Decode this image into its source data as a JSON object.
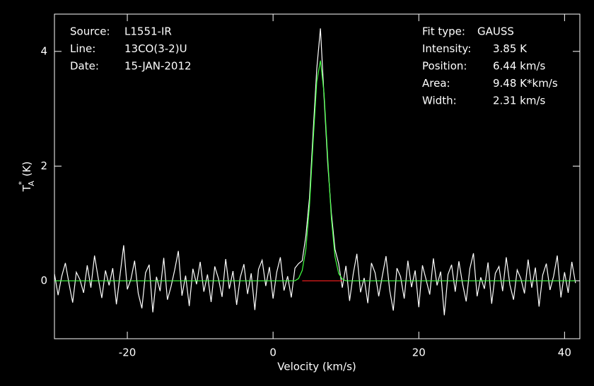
{
  "chart_data": {
    "type": "line",
    "xlabel": "Velocity (km/s)",
    "ylabel": {
      "main": "T",
      "sup": "*",
      "sub": "A",
      "unit": "(K)"
    },
    "xlim": [
      -30,
      42.1
    ],
    "ylim": [
      -1.01,
      4.65
    ],
    "xticks": [
      -20,
      0,
      20,
      40
    ],
    "yticks": [
      0,
      2,
      4
    ],
    "frame_color": "#ffffff",
    "left_notes": [
      {
        "label": "Source:",
        "text": "L1551-IR"
      },
      {
        "label": "Line:",
        "text": "13CO(3-2)U"
      },
      {
        "label": "Date:",
        "text": "15-JAN-2012"
      }
    ],
    "right_notes": [
      {
        "label": "Fit type:",
        "text": "GAUSS"
      },
      {
        "label": "Intensity:",
        "text": "3.85 K"
      },
      {
        "label": "Position:",
        "text": "6.44 km/s"
      },
      {
        "label": "Area:",
        "text": "9.48 K*km/s"
      },
      {
        "label": "Width:",
        "text": "2.31 km/s"
      }
    ],
    "series": [
      {
        "color": "#ffffff",
        "x": [
          -30,
          -29.5,
          -29,
          -28.5,
          -28,
          -27.5,
          -27,
          -26.5,
          -26,
          -25.5,
          -25,
          -24.5,
          -24,
          -23.5,
          -23,
          -22.5,
          -22,
          -21.5,
          -21,
          -20.5,
          -20,
          -19.5,
          -19,
          -18.5,
          -18,
          -17.5,
          -17,
          -16.5,
          -16,
          -15.5,
          -15,
          -14.5,
          -14,
          -13.5,
          -13,
          -12.5,
          -12,
          -11.5,
          -11,
          -10.5,
          -10,
          -9.5,
          -9,
          -8.5,
          -8,
          -7.5,
          -7,
          -6.5,
          -6,
          -5.5,
          -5,
          -4.5,
          -4,
          -3.5,
          -3,
          -2.5,
          -2,
          -1.5,
          -1,
          -0.5,
          0,
          0.5,
          1,
          1.5,
          2,
          2.5,
          3,
          3.5,
          4,
          4.5,
          5,
          5.5,
          6,
          6.5,
          7,
          7.5,
          8,
          8.5,
          9,
          9.5,
          10,
          10.5,
          11,
          11.5,
          12,
          12.5,
          13,
          13.5,
          14,
          14.5,
          15,
          15.5,
          16,
          16.5,
          17,
          17.5,
          18,
          18.5,
          19,
          19.5,
          20,
          20.5,
          21,
          21.5,
          22,
          22.5,
          23,
          23.5,
          24,
          24.5,
          25,
          25.5,
          26,
          26.5,
          27,
          27.5,
          28,
          28.5,
          29,
          29.5,
          30,
          30.5,
          31,
          31.5,
          32,
          32.5,
          33,
          33.5,
          34,
          34.5,
          35,
          35.5,
          36,
          36.5,
          37,
          37.5,
          38,
          38.5,
          39,
          39.5,
          40,
          40.5,
          41,
          41.5
        ],
        "values": [
          0.12,
          -0.25,
          0.08,
          0.31,
          -0.05,
          -0.38,
          0.15,
          0.02,
          -0.21,
          0.27,
          -0.12,
          0.44,
          0.05,
          -0.3,
          0.18,
          -0.08,
          0.22,
          -0.41,
          0.1,
          0.62,
          -0.15,
          0.03,
          0.35,
          -0.22,
          -0.48,
          0.14,
          0.28,
          -0.55,
          0.07,
          -0.18,
          0.4,
          -0.33,
          -0.1,
          0.19,
          0.52,
          -0.26,
          0.09,
          -0.44,
          0.21,
          -0.06,
          0.33,
          -0.19,
          0.11,
          -0.37,
          0.25,
          0.04,
          -0.28,
          0.38,
          -0.14,
          0.17,
          -0.42,
          0.06,
          0.29,
          -0.23,
          0.13,
          -0.51,
          0.2,
          0.36,
          -0.09,
          0.24,
          -0.31,
          0.15,
          0.41,
          -0.17,
          0.08,
          -0.29,
          0.22,
          0.3,
          0.35,
          0.78,
          1.45,
          2.6,
          3.7,
          4.4,
          3.2,
          2.05,
          1.18,
          0.55,
          0.3,
          -0.12,
          0.26,
          -0.35,
          0.12,
          0.47,
          -0.2,
          0.05,
          -0.39,
          0.31,
          0.14,
          -0.27,
          0.09,
          0.43,
          -0.16,
          -0.52,
          0.22,
          0.07,
          -0.31,
          0.35,
          -0.11,
          0.18,
          -0.46,
          0.27,
          0.02,
          -0.24,
          0.39,
          -0.08,
          0.16,
          -0.6,
          0.11,
          0.28,
          -0.19,
          0.34,
          -0.05,
          -0.36,
          0.21,
          0.48,
          -0.27,
          0.06,
          -0.14,
          0.32,
          -0.4,
          0.13,
          0.25,
          -0.18,
          0.41,
          -0.07,
          -0.33,
          0.19,
          0.04,
          -0.22,
          0.37,
          -0.12,
          0.23,
          -0.45,
          0.1,
          0.3,
          -0.16,
          0.08,
          0.44,
          -0.29,
          0.15,
          -0.21,
          0.33,
          -0.04
        ]
      },
      {
        "color": "#ff2020",
        "x": [
          4,
          9.5
        ],
        "values": [
          0,
          0
        ]
      },
      {
        "color": "#40ff40",
        "x": [
          -30,
          3,
          3.5,
          4,
          4.5,
          5,
          5.5,
          6,
          6.5,
          7,
          7.5,
          8,
          8.5,
          9,
          9.5,
          10,
          41.5
        ],
        "values": [
          0,
          0,
          0.04,
          0.18,
          0.55,
          1.31,
          2.43,
          3.48,
          3.84,
          3.27,
          2.15,
          1.09,
          0.42,
          0.13,
          0.03,
          0,
          0
        ]
      }
    ]
  }
}
